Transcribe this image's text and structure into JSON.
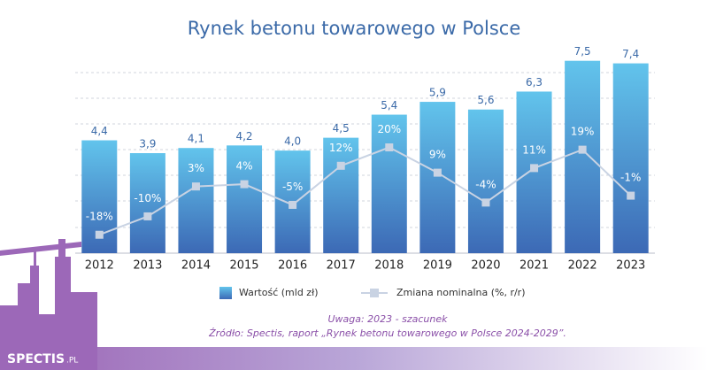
{
  "chart_data": {
    "type": "bar",
    "title": "Rynek betonu towarowego w Polsce",
    "categories": [
      "2012",
      "2013",
      "2014",
      "2015",
      "2016",
      "2017",
      "2018",
      "2019",
      "2020",
      "2021",
      "2022",
      "2023"
    ],
    "series": [
      {
        "name": "Wartość (mld zł)",
        "type": "bar",
        "color": "#4a9ad8",
        "values": [
          4.4,
          3.9,
          4.1,
          4.2,
          4.0,
          4.5,
          5.4,
          5.9,
          5.6,
          6.3,
          7.5,
          7.4
        ],
        "value_labels": [
          "4,4",
          "3,9",
          "4,1",
          "4,2",
          "4,0",
          "4,5",
          "5,4",
          "5,9",
          "5,6",
          "6,3",
          "7,5",
          "7,4"
        ]
      },
      {
        "name": "Zmiana nominalna (%, r/r)",
        "type": "line",
        "axis": "y2",
        "color": "#c9d3e3",
        "values": [
          -18,
          -10,
          3,
          4,
          -5,
          12,
          20,
          9,
          -4,
          11,
          19,
          -1
        ],
        "value_labels": [
          "-18%",
          "-10%",
          "3%",
          "4%",
          "-5%",
          "12%",
          "20%",
          "9%",
          "-4%",
          "11%",
          "19%",
          "-1%"
        ]
      }
    ],
    "ylim": [
      0,
      7.8
    ],
    "y2lim": [
      -26,
      61
    ],
    "notes": [
      "Uwaga: 2023 - szacunek",
      "Źródło: Spectis, raport „Rynek betonu towarowego w Polsce 2024-2029”."
    ],
    "logo": "SPECTIS",
    "logo_suffix": ".PL"
  }
}
